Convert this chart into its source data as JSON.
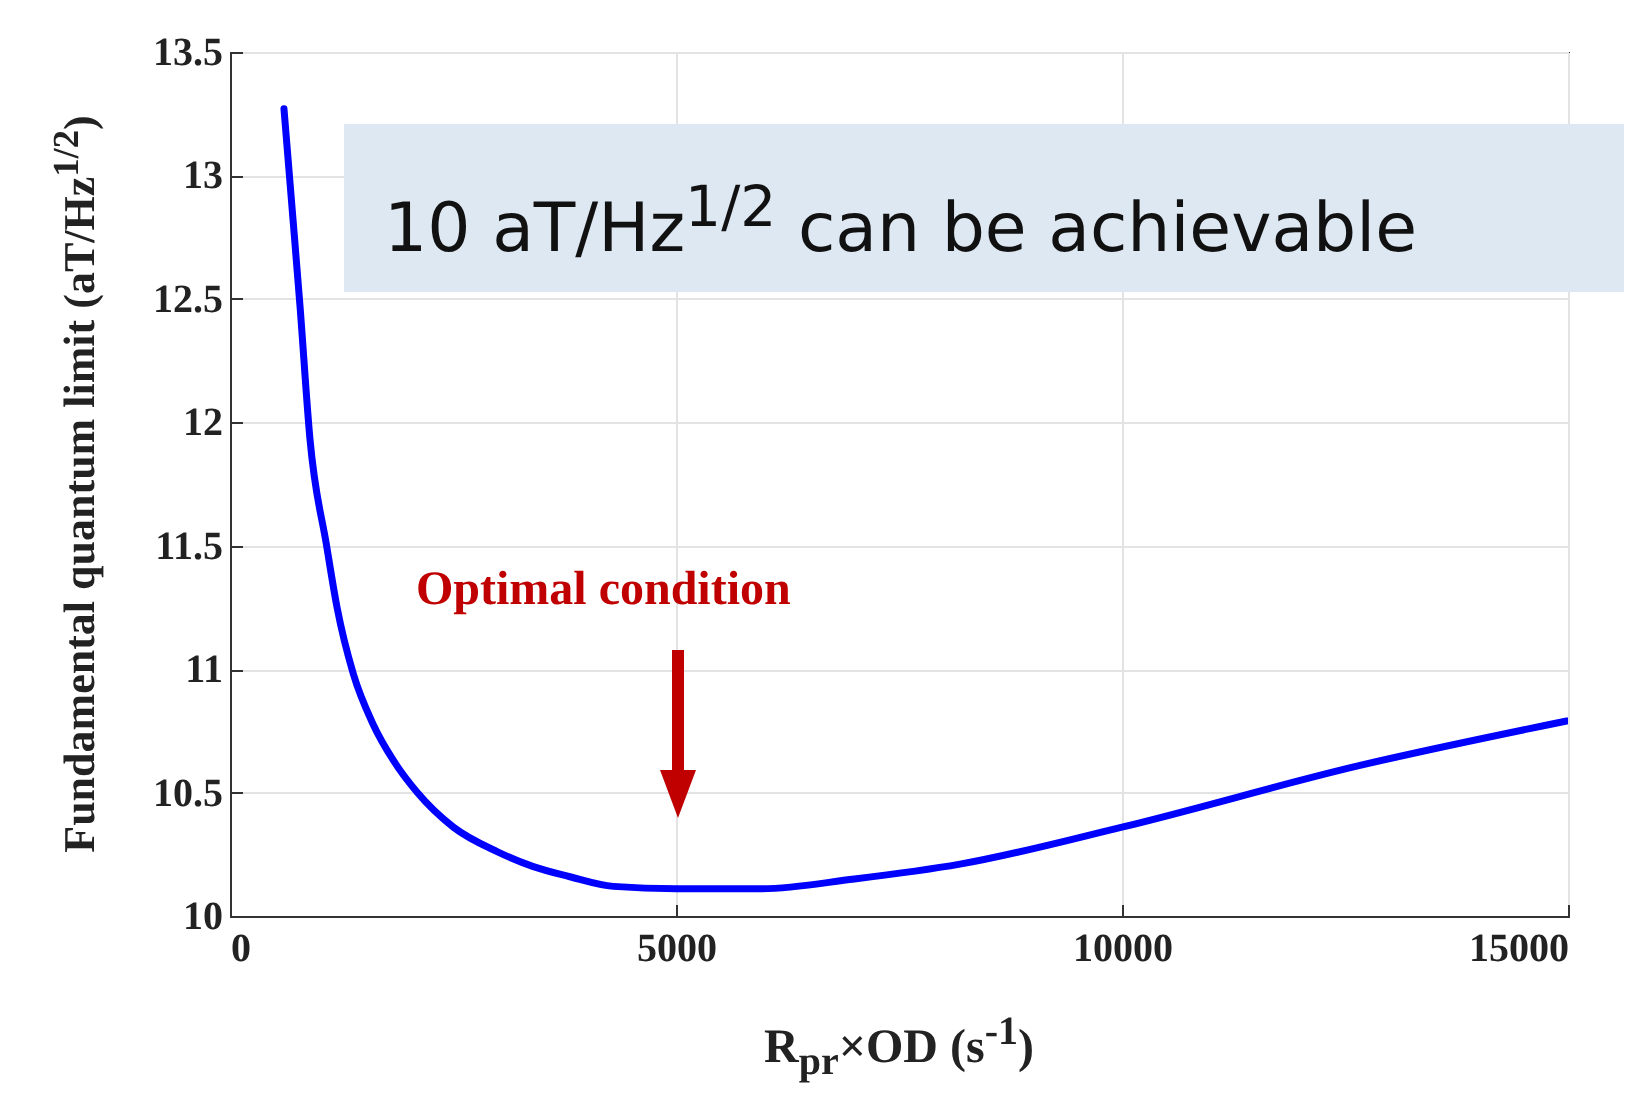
{
  "chart_data": {
    "type": "line",
    "xlabel": "R$_{pr}$×OD (s$^{-1}$)",
    "ylabel": "Fundamental quantum limit (aT/Hz$^{1/2}$)",
    "annotations": [
      "10 aT/Hz$^{1/2}$ can be achievable",
      "Optimal condition"
    ],
    "x": [
      605,
      700,
      785,
      897,
      1083,
      1200,
      1383,
      1600,
      1832,
      2100,
      2504,
      3000,
      3401,
      3800,
      4298,
      5006,
      5942,
      7000,
      8184,
      10000,
      12668,
      14985
    ],
    "series": [
      {
        "color": "#0000ff",
        "values": [
          13.27,
          12.85,
          12.47,
          11.93,
          11.5,
          11.25,
          10.98,
          10.78,
          10.63,
          10.5,
          10.36,
          10.26,
          10.2,
          10.16,
          10.12,
          10.11,
          10.11,
          10.15,
          10.21,
          10.36,
          10.61,
          10.79
        ]
      }
    ],
    "xlim": [
      0,
      15000
    ],
    "xticks": [
      0,
      5000,
      10000,
      15000
    ],
    "ylim": [
      10,
      13.5
    ],
    "yticks": [
      10,
      10.5,
      11,
      11.5,
      12,
      12.5,
      13,
      13.5
    ],
    "grid": true,
    "marker": "none",
    "line_style": "solid"
  }
}
